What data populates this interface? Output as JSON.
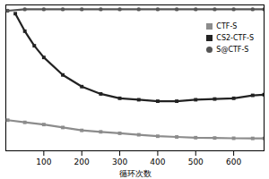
{
  "chart_data": {
    "type": "line",
    "x_label": "循环次数",
    "xlim": [
      0,
      680
    ],
    "xticks": [
      100,
      200,
      300,
      400,
      500,
      600
    ],
    "ylim": [
      0,
      100
    ],
    "tick_labels": "x",
    "legend": "upper right",
    "series": [
      {
        "name": "CTF-S",
        "color": "#8c8c8c",
        "marker": "square",
        "x": [
          5,
          50,
          100,
          150,
          200,
          250,
          300,
          350,
          400,
          450,
          500,
          550,
          600,
          650,
          680
        ],
        "values": [
          21,
          19.5,
          18,
          16,
          14,
          13,
          12,
          11,
          10,
          9.5,
          9,
          8.8,
          8.6,
          8.5,
          8.5
        ]
      },
      {
        "name": "CS2-CTF-S",
        "color": "#222222",
        "marker": "square",
        "x": [
          25,
          50,
          75,
          100,
          150,
          200,
          250,
          300,
          350,
          400,
          450,
          500,
          550,
          600,
          650,
          680
        ],
        "values": [
          94,
          82,
          72,
          64,
          52,
          44,
          39,
          36,
          35,
          34,
          34,
          35,
          35.5,
          36,
          38,
          38.5
        ]
      },
      {
        "name": "S@CTF-S",
        "color": "#555555",
        "marker": "circle",
        "x": [
          5,
          50,
          100,
          150,
          200,
          250,
          300,
          350,
          400,
          450,
          500,
          550,
          600,
          650,
          680
        ],
        "values": [
          96,
          97,
          97,
          97,
          97,
          97,
          97,
          97,
          97,
          97,
          97,
          97,
          97,
          97,
          97
        ]
      }
    ]
  }
}
